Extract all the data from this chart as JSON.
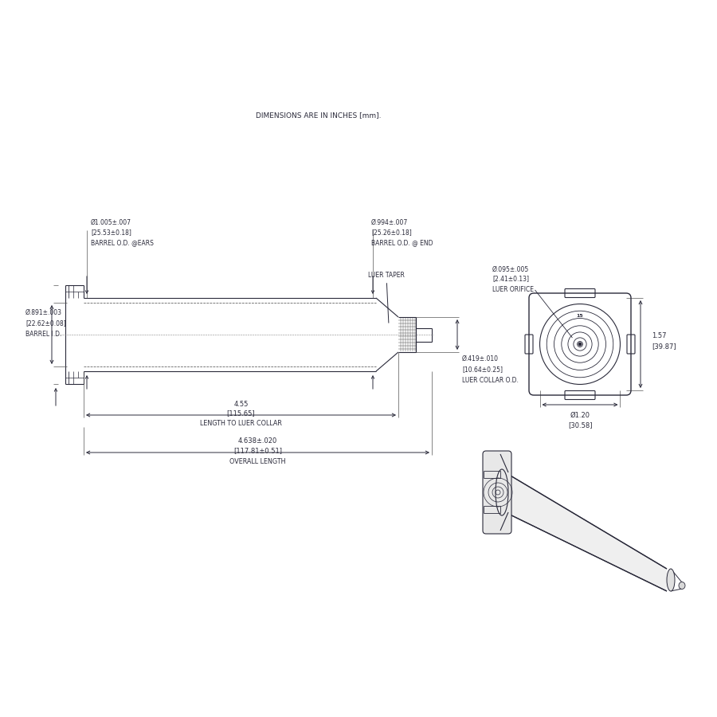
{
  "bg_color": "#ffffff",
  "line_color": "#2a2a3a",
  "dim_color": "#2a2a3a",
  "title_text": "DIMENSIONS ARE IN INCHES [mm].",
  "dims": {
    "barrel_od_ears_l1": "Ø1.005±.007",
    "barrel_od_ears_l2": "[25.53±0.18]",
    "barrel_od_ears_l3": "BARREL O.D. @EARS",
    "barrel_od_end_l1": "Ø.994±.007",
    "barrel_od_end_l2": "[25.26±0.18]",
    "barrel_od_end_l3": "BARREL O.D. @ END",
    "barrel_id_l1": "Ø.891±.003",
    "barrel_id_l2": "[22.62±0.08]",
    "barrel_id_l3": "BARREL I.D.",
    "luer_orifice_l1": "Ø.095±.005",
    "luer_orifice_l2": "[2.41±0.13]",
    "luer_orifice_l3": "LUER ORIFICE",
    "luer_taper": "LUER TAPER",
    "luer_collar_l1": "Ø.419±.010",
    "luer_collar_l2": "[10.64±0.25]",
    "luer_collar_l3": "LUER COLLAR O.D.",
    "ltc_l1": "4.55",
    "ltc_l2": "[115.65]",
    "ltc_l3": "LENGTH TO LUER COLLAR",
    "ol_l1": "4.638±.020",
    "ol_l2": "[117.81±0.51]",
    "ol_l3": "OVERALL LENGTH",
    "ev_h_l1": "1.57",
    "ev_h_l2": "[39.87]",
    "ev_d_l1": "Ø1.20",
    "ev_d_l2": "[30.58]"
  }
}
